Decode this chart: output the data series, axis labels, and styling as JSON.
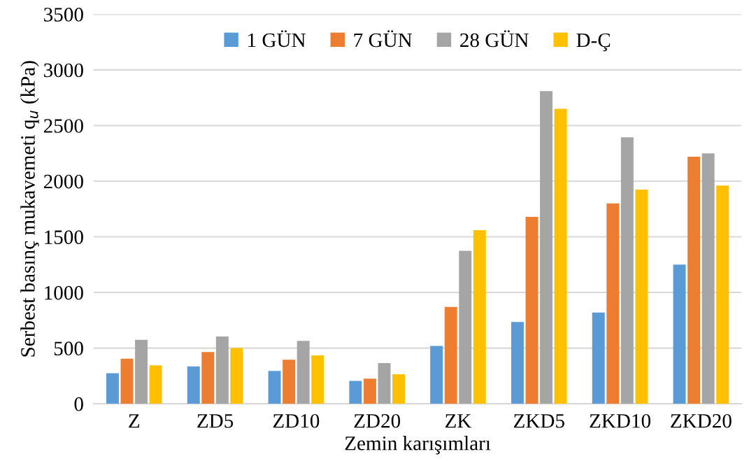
{
  "chart_data": {
    "type": "bar",
    "xlabel": "Zemin karışımları",
    "ylabel": "Serbest basınç mukavemeti q$_{u}$ (kPa)",
    "categories": [
      "Z",
      "ZD5",
      "ZD10",
      "ZD20",
      "ZK",
      "ZKD5",
      "ZKD10",
      "ZKD20"
    ],
    "series": [
      {
        "name": "1 GÜN",
        "color": "#5b9bd5",
        "values": [
          275,
          335,
          295,
          205,
          520,
          735,
          820,
          1250
        ]
      },
      {
        "name": "7 GÜN",
        "color": "#ed7d31",
        "values": [
          405,
          465,
          395,
          225,
          870,
          1680,
          1800,
          2220
        ]
      },
      {
        "name": "28 GÜN",
        "color": "#a5a5a5",
        "values": [
          575,
          605,
          565,
          365,
          1375,
          2810,
          2395,
          2250
        ]
      },
      {
        "name": "D-Ç",
        "color": "#ffc000",
        "values": [
          345,
          500,
          435,
          265,
          1560,
          2650,
          1925,
          1960
        ]
      }
    ],
    "ylim": [
      0,
      3500
    ],
    "yticks": [
      0,
      500,
      1000,
      1500,
      2000,
      2500,
      3000,
      3500
    ],
    "grid": "y",
    "legend": "top"
  }
}
